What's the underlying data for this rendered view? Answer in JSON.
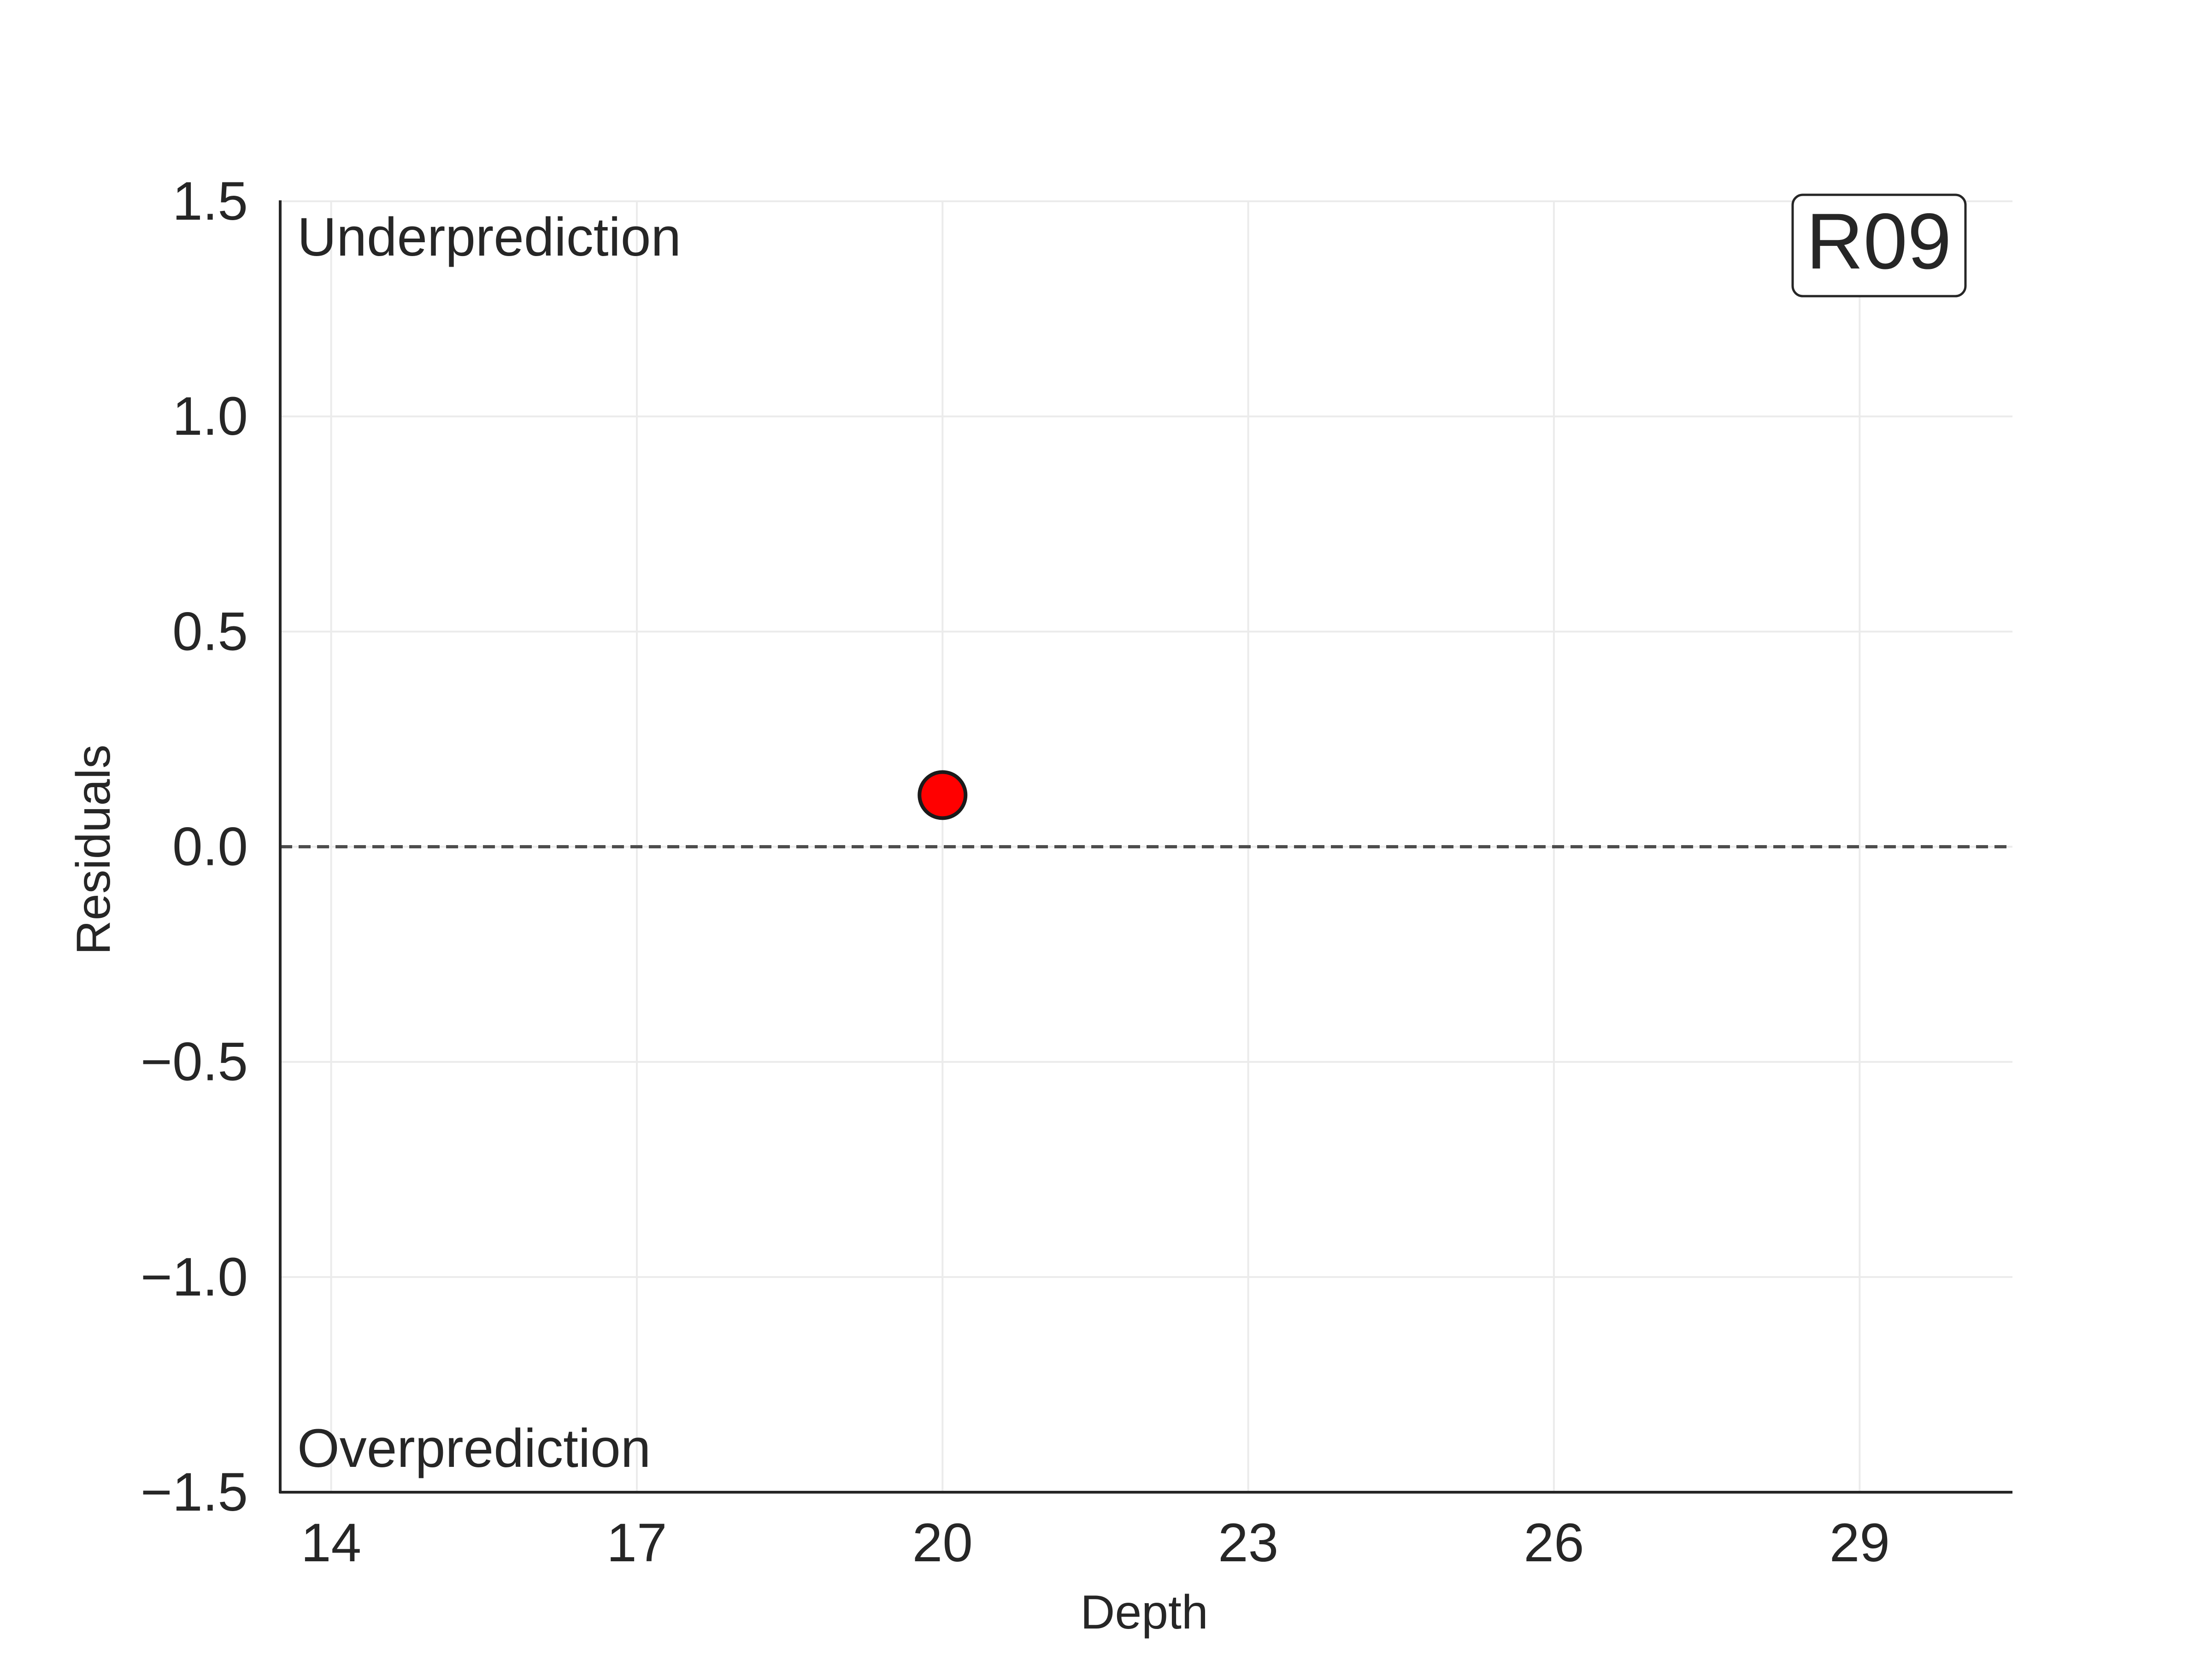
{
  "chart_data": {
    "type": "scatter",
    "xlabel": "Depth",
    "ylabel": "Residuals",
    "xlim": [
      13.5,
      30.5
    ],
    "ylim": [
      -1.5,
      1.5
    ],
    "x_ticks": [
      14,
      17,
      20,
      23,
      26,
      29
    ],
    "y_ticks": [
      -1.5,
      -1.0,
      -0.5,
      0.0,
      0.5,
      1.0,
      1.5
    ],
    "y_tick_labels": [
      "−1.5",
      "−1.0",
      "−0.5",
      "0.0",
      "0.5",
      "1.0",
      "1.5"
    ],
    "grid": true,
    "reference_line": {
      "y": 0.0,
      "style": "dashed"
    },
    "points": [
      {
        "x": 20,
        "y": 0.12
      }
    ],
    "annotations": {
      "top": "Underprediction",
      "bottom": "Overprediction",
      "badge": "R09"
    },
    "colors": {
      "point_fill": "#ff0000",
      "point_edge": "#1a1a1a",
      "grid": "#ebebeb",
      "axis": "#262626",
      "reference": "#4d4d4d"
    }
  }
}
